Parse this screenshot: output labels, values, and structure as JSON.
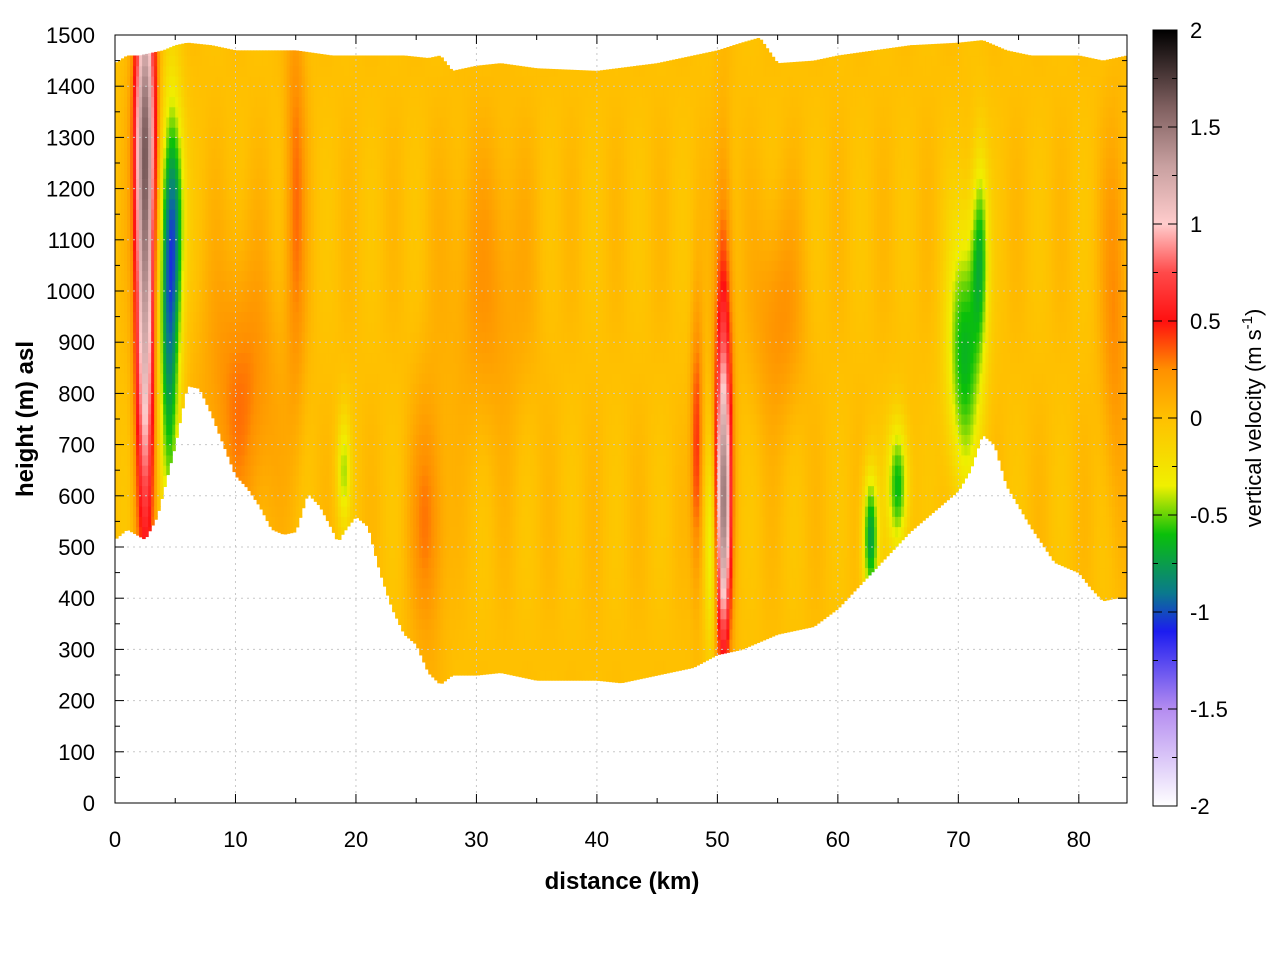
{
  "chart_data": {
    "type": "heatmap",
    "xlabel": "distance (km)",
    "ylabel": "height (m) asl",
    "colorbar_label": "vertical velocity (m s",
    "colorbar_label_sup": "-1",
    "colorbar_label_end": ")",
    "xlim": [
      0,
      84
    ],
    "ylim": [
      0,
      1500
    ],
    "clim": [
      -2,
      2
    ],
    "x_ticks": [
      0,
      10,
      20,
      30,
      40,
      50,
      60,
      70,
      80
    ],
    "y_ticks": [
      0,
      100,
      200,
      300,
      400,
      500,
      600,
      700,
      800,
      900,
      1000,
      1100,
      1200,
      1300,
      1400,
      1500
    ],
    "colorbar_ticks": [
      2,
      1.5,
      1,
      0.5,
      0,
      -0.5,
      -1,
      -1.5,
      -2
    ],
    "grid": true,
    "colormap": [
      {
        "v": -2.0,
        "color": "#ffffff"
      },
      {
        "v": -1.5,
        "color": "#b48cf0"
      },
      {
        "v": -1.1,
        "color": "#1c1cf0"
      },
      {
        "v": -0.9,
        "color": "#0a7a8c"
      },
      {
        "v": -0.6,
        "color": "#0ac00a"
      },
      {
        "v": -0.35,
        "color": "#f0f000"
      },
      {
        "v": 0.0,
        "color": "#ffc000"
      },
      {
        "v": 0.25,
        "color": "#ff9000"
      },
      {
        "v": 0.5,
        "color": "#ff1010"
      },
      {
        "v": 0.75,
        "color": "#ff4a4a"
      },
      {
        "v": 1.0,
        "color": "#ffcccc"
      },
      {
        "v": 1.3,
        "color": "#c8a0a0"
      },
      {
        "v": 1.6,
        "color": "#806060"
      },
      {
        "v": 2.0,
        "color": "#000000"
      }
    ],
    "terrain_height": {
      "x": [
        0,
        1,
        2.5,
        3.5,
        5,
        6,
        7,
        8,
        9,
        10,
        11,
        12,
        13,
        14,
        15,
        16,
        17,
        18,
        18.5,
        19,
        20,
        21,
        22,
        23,
        24,
        25,
        26,
        27,
        28,
        29,
        30,
        32,
        35,
        40,
        42,
        45,
        48,
        50,
        52,
        55,
        57,
        58,
        60,
        62,
        64,
        66,
        68,
        70,
        71,
        72,
        73,
        74,
        75,
        76,
        77,
        78,
        79,
        80,
        81,
        82,
        83,
        84
      ],
      "y": [
        515,
        535,
        515,
        560,
        700,
        815,
        810,
        760,
        700,
        640,
        615,
        580,
        535,
        525,
        530,
        605,
        580,
        535,
        510,
        530,
        560,
        540,
        450,
        380,
        330,
        310,
        255,
        232,
        250,
        250,
        250,
        255,
        240,
        240,
        235,
        250,
        265,
        290,
        300,
        330,
        340,
        345,
        380,
        430,
        480,
        530,
        570,
        610,
        650,
        720,
        700,
        620,
        580,
        540,
        505,
        470,
        460,
        450,
        420,
        395,
        400,
        400
      ]
    },
    "top_height": {
      "x": [
        0,
        1,
        2,
        3,
        4,
        5,
        6,
        8,
        10,
        12,
        15,
        18,
        20,
        22,
        24,
        26,
        27,
        28,
        30,
        32,
        35,
        40,
        45,
        48,
        50,
        52,
        53.5,
        55,
        58,
        60,
        63,
        66,
        70,
        72,
        74,
        76,
        78,
        80,
        82,
        84
      ],
      "y": [
        1445,
        1460,
        1460,
        1465,
        1470,
        1480,
        1485,
        1480,
        1470,
        1470,
        1470,
        1460,
        1460,
        1460,
        1460,
        1455,
        1460,
        1430,
        1440,
        1445,
        1435,
        1430,
        1445,
        1460,
        1470,
        1485,
        1495,
        1445,
        1450,
        1460,
        1470,
        1480,
        1485,
        1490,
        1470,
        1460,
        1460,
        1460,
        1450,
        1460
      ]
    },
    "vertical_velocity_features": [
      {
        "x": 2.5,
        "z": 1050,
        "sx": 0.55,
        "sz": 380,
        "w": 1.35
      },
      {
        "x": 2.5,
        "z": 1350,
        "sx": 0.7,
        "sz": 180,
        "w": 0.6
      },
      {
        "x": 4.5,
        "z": 950,
        "sx": 0.6,
        "sz": 260,
        "w": -0.85
      },
      {
        "x": 5.0,
        "z": 1150,
        "sx": 0.6,
        "sz": 160,
        "w": -0.5
      },
      {
        "x": 10.5,
        "z": 800,
        "sx": 2.2,
        "sz": 200,
        "w": 0.3
      },
      {
        "x": 15,
        "z": 1200,
        "sx": 0.6,
        "sz": 300,
        "w": 0.3
      },
      {
        "x": 19,
        "z": 650,
        "sx": 0.4,
        "sz": 80,
        "w": -0.4
      },
      {
        "x": 26,
        "z": 550,
        "sx": 1.0,
        "sz": 180,
        "w": 0.3
      },
      {
        "x": 31,
        "z": 1000,
        "sx": 2.5,
        "sz": 200,
        "w": 0.2
      },
      {
        "x": 48.3,
        "z": 700,
        "sx": 0.35,
        "sz": 180,
        "w": 0.45
      },
      {
        "x": 49.5,
        "z": 500,
        "sx": 0.35,
        "sz": 150,
        "w": -0.4
      },
      {
        "x": 50.5,
        "z": 560,
        "sx": 0.45,
        "sz": 200,
        "w": 1.25
      },
      {
        "x": 50.5,
        "z": 900,
        "sx": 0.5,
        "sz": 250,
        "w": 0.5
      },
      {
        "x": 55,
        "z": 950,
        "sx": 1.5,
        "sz": 150,
        "w": 0.25
      },
      {
        "x": 62.7,
        "z": 520,
        "sx": 0.45,
        "sz": 90,
        "w": -0.75
      },
      {
        "x": 65,
        "z": 620,
        "sx": 0.6,
        "sz": 90,
        "w": -0.65
      },
      {
        "x": 70.5,
        "z": 880,
        "sx": 1.0,
        "sz": 180,
        "w": -0.65
      },
      {
        "x": 71.8,
        "z": 1080,
        "sx": 0.5,
        "sz": 140,
        "w": -0.55
      },
      {
        "x": 83,
        "z": 950,
        "sx": 0.8,
        "sz": 250,
        "w": 0.25
      }
    ]
  }
}
